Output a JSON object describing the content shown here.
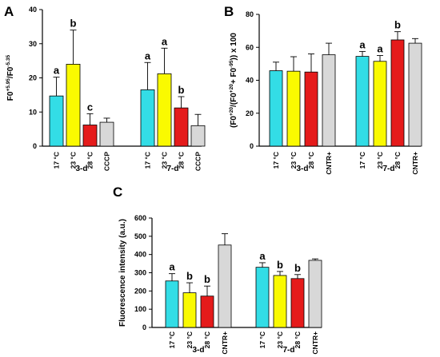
{
  "colors": {
    "cyan": "#33dde6",
    "yellow": "#fafa00",
    "red": "#e51b1b",
    "grey": "#d8d8d8",
    "axis": "#000000"
  },
  "chart_data": [
    {
      "panel": "A",
      "type": "bar",
      "ylabel": "F0^{+5.95}/F0^{-5.35}",
      "ylabel_main": "F0",
      "ylabel_sup1": "+5.95",
      "ylabel_mid": "/F0",
      "ylabel_sup2": "-5.35",
      "ylim": [
        0,
        40
      ],
      "yticks": [
        0,
        10,
        20,
        30,
        40
      ],
      "grid": false,
      "groups": [
        {
          "label": "3-d",
          "bars": [
            {
              "category": "17 °C",
              "value": 14.7,
              "error": 5.5,
              "sig": "a",
              "color": "cyan"
            },
            {
              "category": "23 °C",
              "value": 24.0,
              "error": 10.0,
              "sig": "b",
              "color": "yellow"
            },
            {
              "category": "28 °C",
              "value": 6.2,
              "error": 3.3,
              "sig": "c",
              "color": "red"
            },
            {
              "category": "CCCP",
              "value": 7.0,
              "error": 1.2,
              "sig": "",
              "color": "grey"
            }
          ]
        },
        {
          "label": "7-d",
          "bars": [
            {
              "category": "17 °C",
              "value": 16.5,
              "error": 8.0,
              "sig": "a",
              "color": "cyan"
            },
            {
              "category": "23 °C",
              "value": 21.2,
              "error": 7.5,
              "sig": "a",
              "color": "yellow"
            },
            {
              "category": "28 °C",
              "value": 11.2,
              "error": 3.3,
              "sig": "b",
              "color": "red"
            },
            {
              "category": "CCCP",
              "value": 6.0,
              "error": 3.3,
              "sig": "",
              "color": "grey"
            }
          ]
        }
      ]
    },
    {
      "panel": "B",
      "type": "bar",
      "ylabel": "(F0^{+20}/(F0^{+20}+F0^{-95})) x 100",
      "ylabel_main": "(F0",
      "ylabel_sup1": "+20",
      "ylabel_mid": "/(F0",
      "ylabel_sup2": "+20",
      "ylabel_mid2": "+ F0",
      "ylabel_sup3": "-95",
      "ylabel_end": ")) x 100",
      "ylim": [
        0,
        80
      ],
      "yticks": [
        0,
        20,
        40,
        60,
        80
      ],
      "grid": false,
      "groups": [
        {
          "label": "3-d",
          "bars": [
            {
              "category": "17 °C",
              "value": 45.8,
              "error": 5.2,
              "sig": "",
              "color": "cyan"
            },
            {
              "category": "23 °C",
              "value": 45.5,
              "error": 8.8,
              "sig": "",
              "color": "yellow"
            },
            {
              "category": "28 °C",
              "value": 45.0,
              "error": 11.0,
              "sig": "",
              "color": "red"
            },
            {
              "category": "CNTR+",
              "value": 55.5,
              "error": 7.0,
              "sig": "",
              "color": "grey"
            }
          ]
        },
        {
          "label": "7-d",
          "bars": [
            {
              "category": "17 °C",
              "value": 54.5,
              "error": 3.0,
              "sig": "a",
              "color": "cyan"
            },
            {
              "category": "23 °C",
              "value": 51.5,
              "error": 3.5,
              "sig": "a",
              "color": "yellow"
            },
            {
              "category": "28 °C",
              "value": 64.5,
              "error": 5.0,
              "sig": "b",
              "color": "red"
            },
            {
              "category": "CNTR+",
              "value": 62.5,
              "error": 2.8,
              "sig": "",
              "color": "grey"
            }
          ]
        }
      ]
    },
    {
      "panel": "C",
      "type": "bar",
      "ylabel": "Fluorescence intensity (a.u.)",
      "ylim": [
        0,
        600
      ],
      "yticks": [
        0,
        100,
        200,
        300,
        400,
        500,
        600
      ],
      "grid": false,
      "groups": [
        {
          "label": "3-d",
          "bars": [
            {
              "category": "17 °C",
              "value": 255,
              "error": 40,
              "sig": "a",
              "color": "cyan"
            },
            {
              "category": "23 °C",
              "value": 190,
              "error": 55,
              "sig": "b",
              "color": "yellow"
            },
            {
              "category": "28 °C",
              "value": 172,
              "error": 55,
              "sig": "b",
              "color": "red"
            },
            {
              "category": "CNTR+",
              "value": 452,
              "error": 62,
              "sig": "",
              "color": "grey"
            }
          ]
        },
        {
          "label": "7-d",
          "bars": [
            {
              "category": "17 °C",
              "value": 330,
              "error": 25,
              "sig": "a",
              "color": "cyan"
            },
            {
              "category": "23 °C",
              "value": 285,
              "error": 22,
              "sig": "b",
              "color": "yellow"
            },
            {
              "category": "28 °C",
              "value": 268,
              "error": 22,
              "sig": "b",
              "color": "red"
            },
            {
              "category": "CNTR+",
              "value": 368,
              "error": 8,
              "sig": "",
              "color": "grey"
            }
          ]
        }
      ]
    }
  ]
}
